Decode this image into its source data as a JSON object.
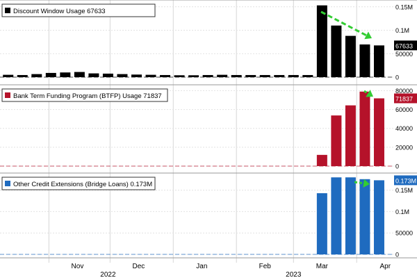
{
  "chart_data": [
    {
      "type": "bar",
      "legend": "Discount Window Usage 67633",
      "last_value_label": "67633",
      "color": "#000000",
      "x": [
        "2022-10-12",
        "2022-10-19",
        "2022-10-26",
        "2022-11-02",
        "2022-11-09",
        "2022-11-16",
        "2022-11-23",
        "2022-11-30",
        "2022-12-07",
        "2022-12-14",
        "2022-12-21",
        "2022-12-28",
        "2023-01-04",
        "2023-01-11",
        "2023-01-18",
        "2023-01-25",
        "2023-02-01",
        "2023-02-08",
        "2023-02-15",
        "2023-02-22",
        "2023-03-01",
        "2023-03-08",
        "2023-03-15",
        "2023-03-22",
        "2023-03-29",
        "2023-04-05",
        "2023-04-12"
      ],
      "values": [
        5000,
        4500,
        6500,
        9000,
        10000,
        11000,
        8000,
        7500,
        6500,
        5500,
        5000,
        4500,
        4000,
        4000,
        4500,
        5000,
        4500,
        4500,
        4500,
        4500,
        4500,
        4500,
        153000,
        110000,
        88000,
        69700,
        67633
      ],
      "y_ticks": [
        0,
        50000,
        100000,
        150000
      ],
      "y_tick_labels": [
        "0",
        "50000",
        "0.1M",
        "0.15M"
      ],
      "ylim": [
        0,
        160000
      ],
      "trend_arrow_color": "#33cc33"
    },
    {
      "type": "bar",
      "legend": "Bank Term Funding Program (BTFP) Usage 71837",
      "last_value_label": "71837",
      "color": "#b5122a",
      "x": [
        "2022-10-12",
        "2022-10-19",
        "2022-10-26",
        "2022-11-02",
        "2022-11-09",
        "2022-11-16",
        "2022-11-23",
        "2022-11-30",
        "2022-12-07",
        "2022-12-14",
        "2022-12-21",
        "2022-12-28",
        "2023-01-04",
        "2023-01-11",
        "2023-01-18",
        "2023-01-25",
        "2023-02-01",
        "2023-02-08",
        "2023-02-15",
        "2023-02-22",
        "2023-03-01",
        "2023-03-08",
        "2023-03-15",
        "2023-03-22",
        "2023-03-29",
        "2023-04-05",
        "2023-04-12"
      ],
      "values": [
        0,
        0,
        0,
        0,
        0,
        0,
        0,
        0,
        0,
        0,
        0,
        0,
        0,
        0,
        0,
        0,
        0,
        0,
        0,
        0,
        0,
        0,
        11900,
        53700,
        64400,
        79000,
        71837
      ],
      "y_ticks": [
        0,
        20000,
        40000,
        60000,
        80000
      ],
      "y_tick_labels": [
        "0",
        "20000",
        "40000",
        "60000",
        "80000"
      ],
      "ylim": [
        0,
        84000
      ],
      "trend_arrow_color": "#33cc33"
    },
    {
      "type": "bar",
      "legend": "Other Credit Extensions (Bridge Loans) 0.173M",
      "last_value_label": "0.173M",
      "color": "#1f6bbf",
      "x": [
        "2022-10-12",
        "2022-10-19",
        "2022-10-26",
        "2022-11-02",
        "2022-11-09",
        "2022-11-16",
        "2022-11-23",
        "2022-11-30",
        "2022-12-07",
        "2022-12-14",
        "2022-12-21",
        "2022-12-28",
        "2023-01-04",
        "2023-01-11",
        "2023-01-18",
        "2023-01-25",
        "2023-02-01",
        "2023-02-08",
        "2023-02-15",
        "2023-02-22",
        "2023-03-01",
        "2023-03-08",
        "2023-03-15",
        "2023-03-22",
        "2023-03-29",
        "2023-04-05",
        "2023-04-12"
      ],
      "values": [
        0,
        0,
        0,
        0,
        0,
        0,
        0,
        0,
        0,
        0,
        0,
        0,
        0,
        0,
        0,
        0,
        0,
        0,
        0,
        0,
        0,
        0,
        142800,
        179800,
        179800,
        175600,
        173000
      ],
      "y_ticks": [
        0,
        50000,
        100000,
        150000
      ],
      "y_tick_labels": [
        "0",
        "50000",
        "0.1M",
        "0.15M"
      ],
      "ylim": [
        0,
        185000
      ],
      "trend_arrow_color": "#33cc33"
    }
  ],
  "x_axis": {
    "months": [
      {
        "label": "Nov",
        "date": "2022-11-15"
      },
      {
        "label": "Dec",
        "date": "2022-12-15"
      },
      {
        "label": "Jan",
        "date": "2023-01-15"
      },
      {
        "label": "Feb",
        "date": "2023-02-15"
      },
      {
        "label": "Mar",
        "date": "2023-03-15"
      },
      {
        "label": "Apr",
        "date": "2023-04-15"
      }
    ],
    "years": [
      {
        "label": "2022",
        "date": "2022-11-30"
      },
      {
        "label": "2023",
        "date": "2023-03-01"
      }
    ],
    "range": [
      "2022-10-08",
      "2023-04-19"
    ]
  }
}
